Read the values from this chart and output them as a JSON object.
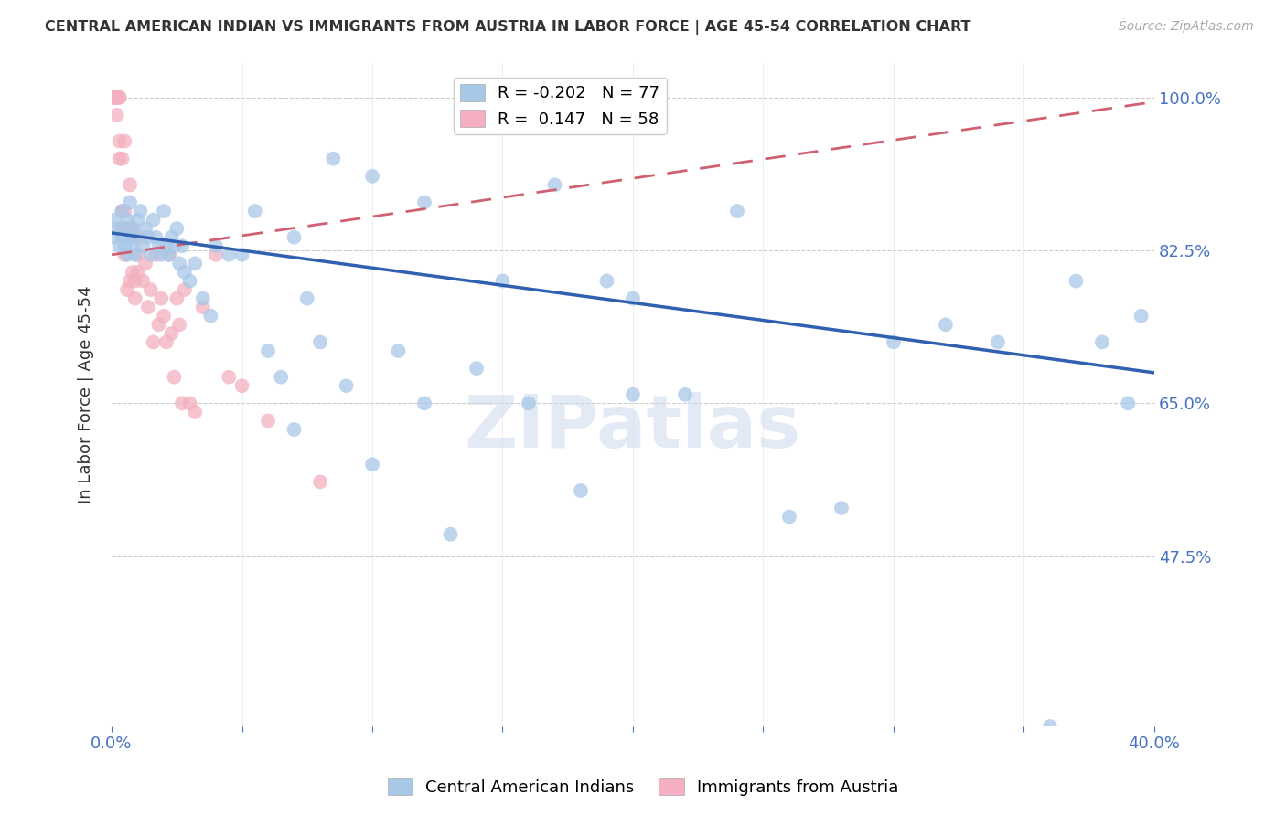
{
  "title": "CENTRAL AMERICAN INDIAN VS IMMIGRANTS FROM AUSTRIA IN LABOR FORCE | AGE 45-54 CORRELATION CHART",
  "source": "Source: ZipAtlas.com",
  "ylabel": "In Labor Force | Age 45-54",
  "xlim": [
    0.0,
    0.4
  ],
  "ylim": [
    0.28,
    1.04
  ],
  "yticks": [
    0.475,
    0.65,
    0.825,
    1.0
  ],
  "ytick_labels": [
    "47.5%",
    "65.0%",
    "82.5%",
    "100.0%"
  ],
  "blue_R": -0.202,
  "blue_N": 77,
  "pink_R": 0.147,
  "pink_N": 58,
  "blue_color": "#a8c8e8",
  "pink_color": "#f4b0c0",
  "blue_line_color": "#3060b0",
  "pink_line_color": "#d06070",
  "watermark": "ZIPatlas",
  "blue_line_x0": 0.0,
  "blue_line_y0": 0.845,
  "blue_line_x1": 0.4,
  "blue_line_y1": 0.685,
  "pink_line_x0": 0.0,
  "pink_line_y0": 0.82,
  "pink_line_x1": 0.4,
  "pink_line_y1": 0.995,
  "blue_x": [
    0.001,
    0.001,
    0.002,
    0.003,
    0.004,
    0.004,
    0.005,
    0.005,
    0.006,
    0.006,
    0.007,
    0.007,
    0.008,
    0.008,
    0.009,
    0.009,
    0.01,
    0.011,
    0.012,
    0.013,
    0.014,
    0.015,
    0.016,
    0.017,
    0.018,
    0.019,
    0.02,
    0.021,
    0.022,
    0.023,
    0.024,
    0.025,
    0.026,
    0.027,
    0.028,
    0.03,
    0.032,
    0.035,
    0.038,
    0.04,
    0.045,
    0.05,
    0.055,
    0.06,
    0.065,
    0.07,
    0.075,
    0.08,
    0.09,
    0.1,
    0.11,
    0.12,
    0.13,
    0.14,
    0.15,
    0.16,
    0.17,
    0.18,
    0.19,
    0.2,
    0.22,
    0.24,
    0.26,
    0.28,
    0.3,
    0.32,
    0.34,
    0.36,
    0.37,
    0.38,
    0.39,
    0.395,
    0.1,
    0.2,
    0.12,
    0.07,
    0.085
  ],
  "blue_y": [
    0.84,
    0.86,
    0.85,
    0.83,
    0.87,
    0.84,
    0.85,
    0.83,
    0.82,
    0.86,
    0.84,
    0.88,
    0.83,
    0.85,
    0.84,
    0.82,
    0.86,
    0.87,
    0.83,
    0.85,
    0.84,
    0.82,
    0.86,
    0.84,
    0.83,
    0.82,
    0.87,
    0.83,
    0.82,
    0.84,
    0.83,
    0.85,
    0.81,
    0.83,
    0.8,
    0.79,
    0.81,
    0.77,
    0.75,
    0.83,
    0.82,
    0.82,
    0.87,
    0.71,
    0.68,
    0.84,
    0.77,
    0.72,
    0.67,
    0.91,
    0.71,
    0.88,
    0.5,
    0.69,
    0.79,
    0.65,
    0.9,
    0.55,
    0.79,
    0.77,
    0.66,
    0.87,
    0.52,
    0.53,
    0.72,
    0.74,
    0.72,
    0.28,
    0.79,
    0.72,
    0.65,
    0.75,
    0.58,
    0.66,
    0.65,
    0.62,
    0.93
  ],
  "pink_x": [
    0.001,
    0.001,
    0.001,
    0.001,
    0.001,
    0.001,
    0.002,
    0.002,
    0.002,
    0.002,
    0.003,
    0.003,
    0.003,
    0.003,
    0.004,
    0.004,
    0.004,
    0.005,
    0.005,
    0.005,
    0.005,
    0.006,
    0.006,
    0.007,
    0.007,
    0.007,
    0.008,
    0.008,
    0.009,
    0.009,
    0.01,
    0.01,
    0.011,
    0.012,
    0.013,
    0.014,
    0.015,
    0.016,
    0.017,
    0.018,
    0.019,
    0.02,
    0.021,
    0.022,
    0.023,
    0.024,
    0.025,
    0.026,
    0.027,
    0.028,
    0.03,
    0.032,
    0.035,
    0.04,
    0.045,
    0.05,
    0.06,
    0.08
  ],
  "pink_y": [
    1.0,
    1.0,
    1.0,
    1.0,
    1.0,
    1.0,
    1.0,
    1.0,
    1.0,
    0.98,
    1.0,
    1.0,
    0.95,
    0.93,
    0.93,
    0.87,
    0.85,
    0.95,
    0.87,
    0.85,
    0.82,
    0.85,
    0.78,
    0.9,
    0.85,
    0.79,
    0.8,
    0.85,
    0.79,
    0.77,
    0.82,
    0.8,
    0.84,
    0.79,
    0.81,
    0.76,
    0.78,
    0.72,
    0.82,
    0.74,
    0.77,
    0.75,
    0.72,
    0.82,
    0.73,
    0.68,
    0.77,
    0.74,
    0.65,
    0.78,
    0.65,
    0.64,
    0.76,
    0.82,
    0.68,
    0.67,
    0.63,
    0.56
  ]
}
